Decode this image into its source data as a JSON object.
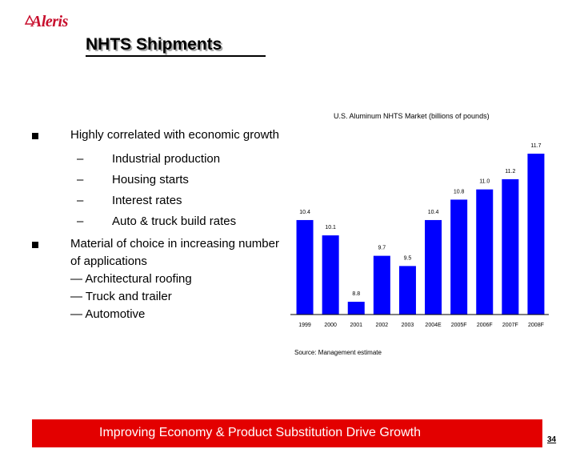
{
  "header": {
    "logo_text": "Aleris",
    "brand_color": "#c8102e",
    "title": "NHTS Shipments"
  },
  "bullets": [
    {
      "text": "Highly correlated with economic growth",
      "subitems": [
        "Industrial production",
        "Housing starts",
        "Interest rates",
        "Auto & truck build rates"
      ]
    },
    {
      "lines": [
        "Material of choice in increasing number",
        "of applications",
        "— Architectural roofing",
        "— Truck and trailer",
        "— Automotive"
      ]
    }
  ],
  "chart_data": {
    "type": "bar",
    "title": "U.S. Aluminum NHTS Market (billions of pounds)",
    "categories": [
      "1999",
      "2000",
      "2001",
      "2002",
      "2003",
      "2004E",
      "2005F",
      "2006F",
      "2007F",
      "2008F"
    ],
    "values": [
      10.4,
      10.1,
      8.8,
      9.7,
      9.5,
      10.4,
      10.8,
      11.0,
      11.2,
      11.7
    ],
    "value_labels": [
      "10.4",
      "10.1",
      "8.8",
      "9.7",
      "9.5",
      "10.4",
      "10.8",
      "11.0",
      "11.2",
      "11.7"
    ],
    "ylim": [
      0,
      11.7
    ],
    "xlabel": "",
    "ylabel": "",
    "bar_color": "#0000ff"
  },
  "source": "Source: Management estimate",
  "banner": {
    "text": "Improving Economy & Product Substitution Drive Growth",
    "color": "#e30000"
  },
  "page_number": "34"
}
